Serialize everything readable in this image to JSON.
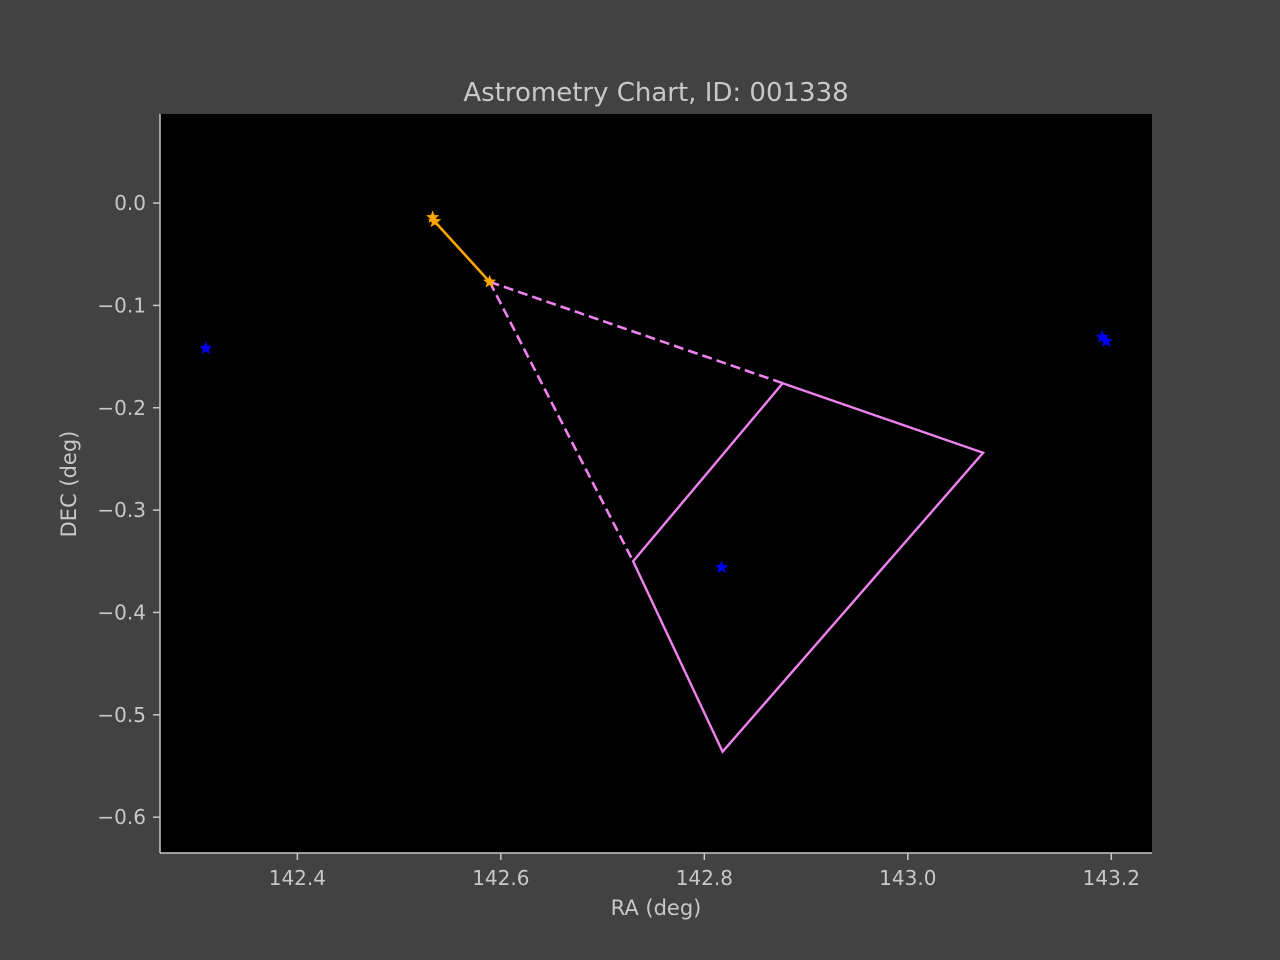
{
  "chart_data": {
    "type": "scatter",
    "title": "Astrometry Chart, ID: 001338",
    "xlabel": "RA (deg)",
    "ylabel": "DEC (deg)",
    "xlim": [
      142.265,
      143.24
    ],
    "ylim": [
      -0.635,
      0.087
    ],
    "xticks": [
      142.4,
      142.6,
      142.8,
      143.0,
      143.2
    ],
    "yticks": [
      0.0,
      -0.1,
      -0.2,
      -0.3,
      -0.4,
      -0.5,
      -0.6
    ],
    "xtick_labels": [
      "142.4",
      "142.6",
      "142.8",
      "143.0",
      "143.2"
    ],
    "ytick_labels": [
      "0.0",
      "−0.1",
      "−0.2",
      "−0.3",
      "−0.4",
      "−0.5",
      "−0.6"
    ],
    "grid": false,
    "plot_background": "#000000",
    "figure_background": "#424242",
    "text_color": "#c8c8c8",
    "stars": {
      "color": "#0000ff",
      "points": [
        {
          "x": 142.31,
          "y": -0.142
        },
        {
          "x": 142.817,
          "y": -0.356
        },
        {
          "x": 143.191,
          "y": -0.131
        },
        {
          "x": 143.195,
          "y": -0.135
        }
      ]
    },
    "track": {
      "color": "#ffa500",
      "points": [
        {
          "x": 142.533,
          "y": -0.014
        },
        {
          "x": 142.535,
          "y": -0.018
        },
        {
          "x": 142.589,
          "y": -0.077
        }
      ]
    },
    "field_of_view": {
      "color": "#ee82ee",
      "polygon": [
        {
          "x": 142.877,
          "y": -0.176
        },
        {
          "x": 143.074,
          "y": -0.244
        },
        {
          "x": 142.818,
          "y": -0.536
        },
        {
          "x": 142.73,
          "y": -0.35
        }
      ],
      "dashed_from": {
        "x": 142.589,
        "y": -0.077
      },
      "dashed_to": [
        {
          "x": 142.877,
          "y": -0.176
        },
        {
          "x": 142.73,
          "y": -0.35
        }
      ]
    }
  }
}
